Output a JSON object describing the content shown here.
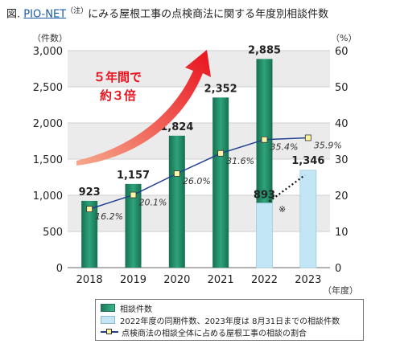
{
  "header": {
    "prefix": "図.",
    "link": "PIO-NET",
    "note": "（注）",
    "rest": "にみる屋根工事の点検商法に関する年度別相談件数"
  },
  "chart_data": {
    "type": "bar",
    "categories": [
      "2018",
      "2019",
      "2020",
      "2021",
      "2022",
      "2023"
    ],
    "ylabel": "（件数）",
    "y2label": "（%）",
    "xlabel": "（年度）",
    "ylim": [
      0,
      3000
    ],
    "y2lim": [
      0,
      60
    ],
    "yticks": [
      "0",
      "500",
      "1,000",
      "1,500",
      "2,000",
      "2,500",
      "3,000"
    ],
    "y2ticks": [
      "0",
      "10",
      "20",
      "30",
      "40",
      "50",
      "60"
    ],
    "grid": true,
    "series": [
      {
        "name": "相談件数",
        "type": "bar",
        "color": "#1d8a66",
        "values": [
          923,
          1157,
          1824,
          2352,
          2885,
          null
        ],
        "labels": [
          "923",
          "1,157",
          "1,824",
          "2,352",
          "2,885",
          ""
        ]
      },
      {
        "name": "2022年度の同期件数、2023年度は 8月31日までの相談件数",
        "type": "bar",
        "color": "#c3e6f7",
        "values": [
          null,
          null,
          null,
          null,
          893,
          1346
        ],
        "labels": [
          "",
          "",
          "",
          "",
          "893",
          "1,346"
        ]
      },
      {
        "name": "点検商法の相談全体に占める屋根工事の相談の割合",
        "type": "line",
        "axis": "right",
        "color": "#1f3f8f",
        "values": [
          16.2,
          20.1,
          26.0,
          31.6,
          35.4,
          35.9
        ],
        "labels": [
          "16.2%",
          "20.1%",
          "26.0%",
          "31.6%",
          "35.4%",
          "35.9%"
        ]
      }
    ],
    "annotations": {
      "arrow_text_1": "５年間で",
      "arrow_text_2": "約３倍",
      "asterisk": "※"
    },
    "legend_position": "bottom"
  }
}
